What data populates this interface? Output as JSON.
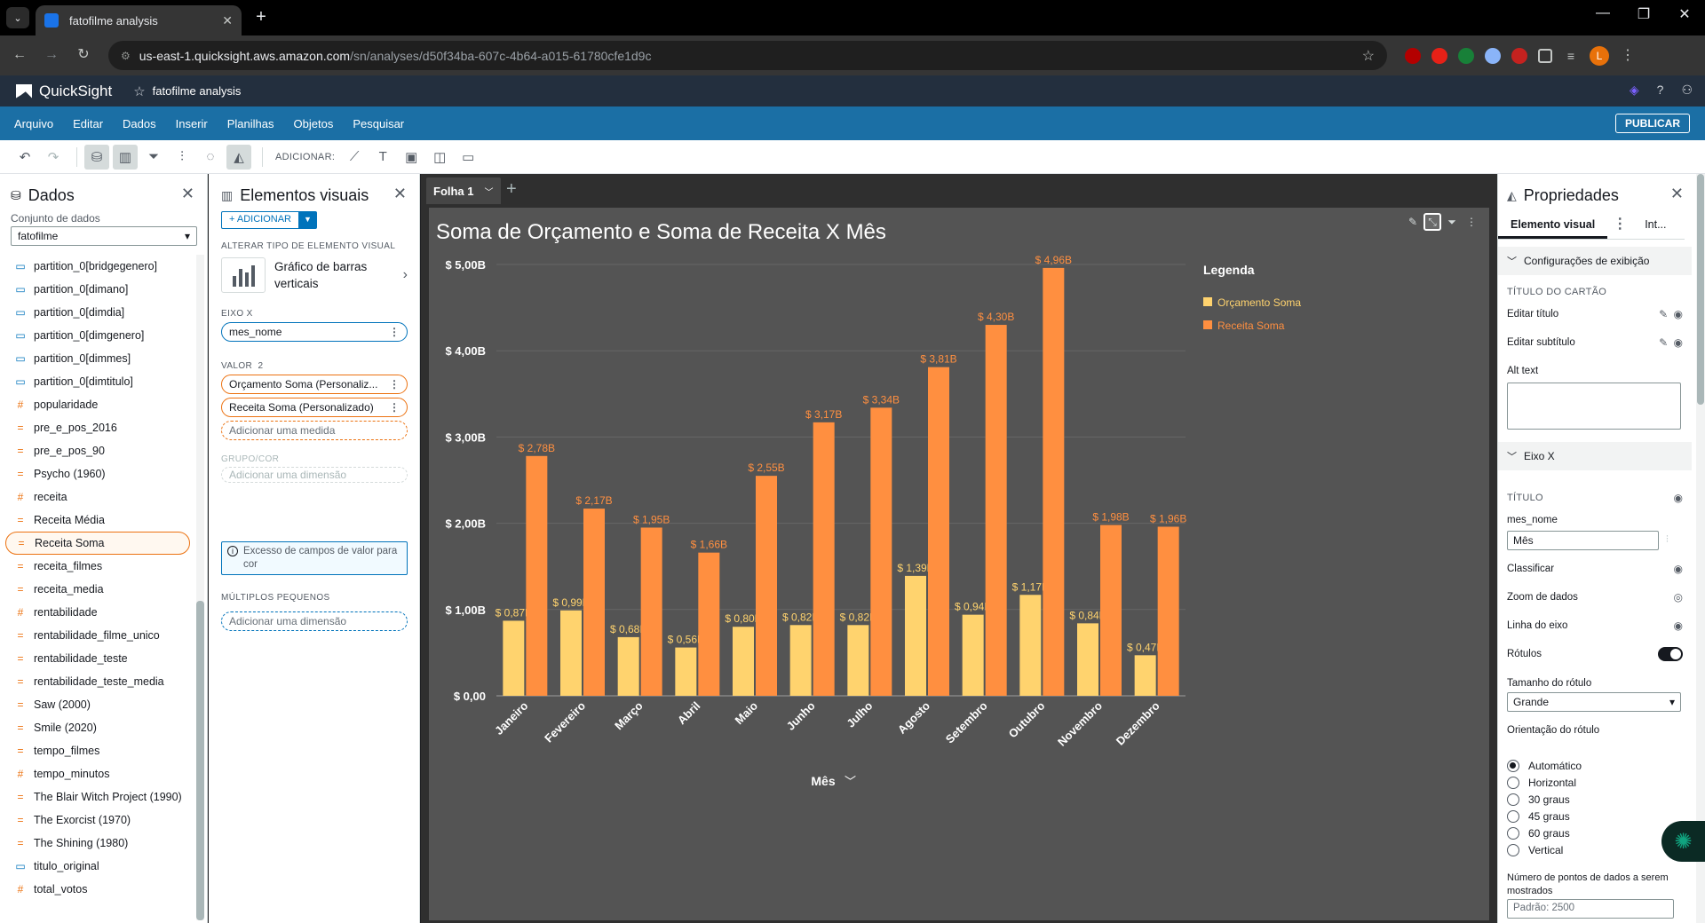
{
  "browser": {
    "tab_title": "fatofilme analysis",
    "url_host": "us-east-1.quicksight.aws.amazon.com",
    "url_path": "/sn/analyses/d50f34ba-607c-4b64-a015-61780cfe1d9c",
    "profile_initial": "L"
  },
  "qs_header": {
    "brand": "QuickSight",
    "analysis_name": "fatofilme analysis"
  },
  "menu": {
    "items": [
      "Arquivo",
      "Editar",
      "Dados",
      "Inserir",
      "Planilhas",
      "Objetos",
      "Pesquisar"
    ],
    "publish": "PUBLICAR"
  },
  "toolbar": {
    "add_label": "ADICIONAR:"
  },
  "data_pane": {
    "title": "Dados",
    "dataset_label": "Conjunto de dados",
    "dataset_value": "fatofilme",
    "fields": [
      {
        "name": "partition_0[bridgegenero]",
        "type": "dim"
      },
      {
        "name": "partition_0[dimano]",
        "type": "dim"
      },
      {
        "name": "partition_0[dimdia]",
        "type": "dim"
      },
      {
        "name": "partition_0[dimgenero]",
        "type": "dim"
      },
      {
        "name": "partition_0[dimmes]",
        "type": "dim"
      },
      {
        "name": "partition_0[dimtitulo]",
        "type": "dim"
      },
      {
        "name": "popularidade",
        "type": "meas"
      },
      {
        "name": "pre_e_pos_2016",
        "type": "calc"
      },
      {
        "name": "pre_e_pos_90",
        "type": "calc"
      },
      {
        "name": "Psycho (1960)",
        "type": "calc"
      },
      {
        "name": "receita",
        "type": "meas"
      },
      {
        "name": "Receita Média",
        "type": "calc"
      },
      {
        "name": "Receita Soma",
        "type": "calc",
        "selected": true
      },
      {
        "name": "receita_filmes",
        "type": "calc"
      },
      {
        "name": "receita_media",
        "type": "calc"
      },
      {
        "name": "rentabilidade",
        "type": "meas"
      },
      {
        "name": "rentabilidade_filme_unico",
        "type": "calc"
      },
      {
        "name": "rentabilidade_teste",
        "type": "calc"
      },
      {
        "name": "rentabilidade_teste_media",
        "type": "calc"
      },
      {
        "name": "Saw (2000)",
        "type": "calc"
      },
      {
        "name": "Smile (2020)",
        "type": "calc"
      },
      {
        "name": "tempo_filmes",
        "type": "calc"
      },
      {
        "name": "tempo_minutos",
        "type": "meas"
      },
      {
        "name": "The Blair Witch Project (1990)",
        "type": "calc"
      },
      {
        "name": "The Exorcist (1970)",
        "type": "calc"
      },
      {
        "name": "The Shining (1980)",
        "type": "calc"
      },
      {
        "name": "titulo_original",
        "type": "dim"
      },
      {
        "name": "total_votos",
        "type": "meas"
      }
    ]
  },
  "visuals_pane": {
    "title": "Elementos visuais",
    "add_button": "+ ADICIONAR",
    "change_type_label": "ALTERAR TIPO DE ELEMENTO VISUAL",
    "visual_type": "Gráfico de barras verticais",
    "x_axis_label": "EIXO X",
    "x_axis_field": "mes_nome",
    "value_label": "VALOR",
    "value_count": "2",
    "value_fields": [
      "Orçamento Soma (Personaliz...",
      "Receita Soma (Personalizado)"
    ],
    "add_measure": "Adicionar uma medida",
    "group_label": "GRUPO/COR",
    "add_dimension_disabled": "Adicionar uma dimensão",
    "warning": "Excesso de campos de valor para cor",
    "small_multiples_label": "MÚLTIPLOS PEQUENOS",
    "add_dimension": "Adicionar uma dimensão"
  },
  "canvas": {
    "sheet_name": "Folha 1"
  },
  "colors": {
    "budget": "#ffd36e",
    "revenue": "#ff8f40",
    "canvas_bg": "#545454"
  },
  "chart_data": {
    "type": "bar",
    "title": "Soma de Orçamento e Soma de Receita X Mês",
    "xlabel": "Mês",
    "legend_title": "Legenda",
    "legend_position": "top-right",
    "grid": true,
    "ylim": [
      0,
      5.0
    ],
    "y_ticks": [
      "$ 0,00",
      "$ 1,00B",
      "$ 2,00B",
      "$ 3,00B",
      "$ 4,00B",
      "$ 5,00B"
    ],
    "categories": [
      "Janeiro",
      "Fevereiro",
      "Março",
      "Abril",
      "Maio",
      "Junho",
      "Julho",
      "Agosto",
      "Setembro",
      "Outubro",
      "Novembro",
      "Dezembro"
    ],
    "series": [
      {
        "name": "Orçamento Soma",
        "values": [
          0.87,
          0.99,
          0.68,
          0.56,
          0.8,
          0.82,
          0.82,
          1.39,
          0.94,
          1.17,
          0.84,
          0.47
        ],
        "labels": [
          "$ 0,87B",
          "$ 0,99B",
          "$ 0,68B",
          "$ 0,56B",
          "$ 0,80B",
          "$ 0,82B",
          "$ 0,82B",
          "$ 1,39B",
          "$ 0,94B",
          "$ 1,17B",
          "$ 0,84B",
          "$ 0,47B"
        ]
      },
      {
        "name": "Receita Soma",
        "values": [
          2.78,
          2.17,
          1.95,
          1.66,
          2.55,
          3.17,
          3.34,
          3.81,
          4.3,
          4.96,
          1.98,
          1.96
        ],
        "labels": [
          "$ 2,78B",
          "$ 2,17B",
          "$ 1,95B",
          "$ 1,66B",
          "$ 2,55B",
          "$ 3,17B",
          "$ 3,34B",
          "$ 3,81B",
          "$ 4,30B",
          "$ 4,96B",
          "$ 1,98B",
          "$ 1,96B"
        ]
      }
    ]
  },
  "properties": {
    "title": "Propriedades",
    "tab_visual": "Elemento visual",
    "tab_interactions": "Int...",
    "section_display": "Configurações de exibição",
    "card_title_label": "TÍTULO DO CARTÃO",
    "edit_title": "Editar título",
    "edit_subtitle": "Editar subtítulo",
    "alt_text": "Alt text",
    "section_x_axis": "Eixo X",
    "title_label": "TÍTULO",
    "x_field_name": "mes_nome",
    "x_title_value": "Mês",
    "sort": "Classificar",
    "data_zoom": "Zoom de dados",
    "axis_line": "Linha do eixo",
    "labels": "Rótulos",
    "label_size_label": "Tamanho do rótulo",
    "label_size_value": "Grande",
    "label_orientation_label": "Orientação do rótulo",
    "orientations": [
      "Automático",
      "Horizontal",
      "30 graus",
      "45 graus",
      "60 graus",
      "Vertical"
    ],
    "selected_orientation": 0,
    "points_label": "Número de pontos de dados a serem mostrados",
    "points_placeholder": "Padrão: 2500"
  }
}
